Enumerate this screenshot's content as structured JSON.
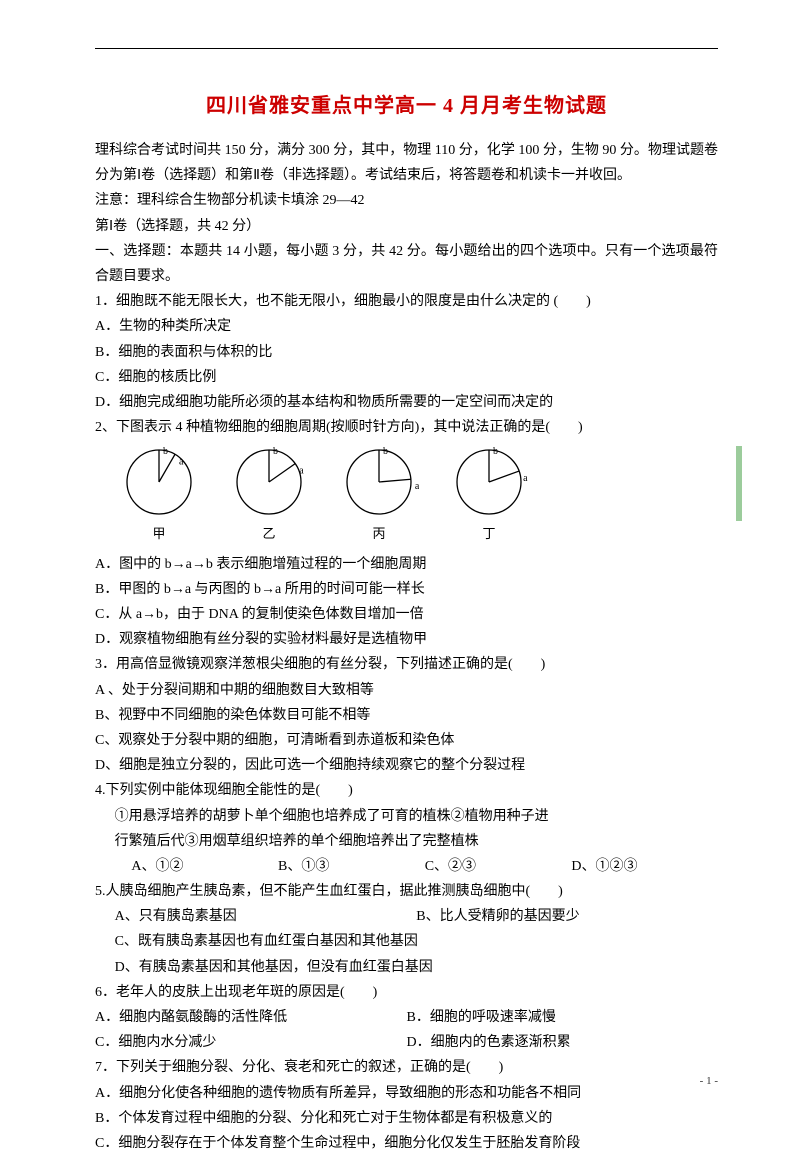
{
  "colors": {
    "title": "#cc0000",
    "text": "#000000",
    "bg": "#ffffff",
    "green_bar": "#9ccc9c"
  },
  "title": "四川省雅安重点中学高一 4 月月考生物试题",
  "intro": {
    "p1": "理科综合考试时间共 150 分，满分 300 分，其中，物理 110 分，化学 100 分，生物 90 分。物理试题卷分为第Ⅰ卷（选择题）和第Ⅱ卷（非选择题）。考试结束后，将答题卷和机读卡一并收回。",
    "p2": "注意：理科综合生物部分机读卡填涂 29—42",
    "p3": "第Ⅰ卷（选择题，共 42 分）",
    "p4": "一、选择题：本题共 14 小题，每小题 3 分，共 42 分。每小题给出的四个选项中。只有一个选项最符合题目要求。"
  },
  "q1": {
    "stem": "1．细胞既不能无限长大，也不能无限小，细胞最小的限度是由什么决定的 (　　)",
    "A": "A．生物的种类所决定",
    "B": "B．细胞的表面积与体积的比",
    "C": "C．细胞的核质比例",
    "D": "D．细胞完成细胞功能所必须的基本结构和物质所需要的一定空间而决定的"
  },
  "q2": {
    "stem": "2、下图表示 4 种植物细胞的细胞周期(按顺时针方向)，其中说法正确的是(　　)",
    "A": "A．图中的 b→a→b 表示细胞增殖过程的一个细胞周期",
    "B": "B．甲图的 b→a 与丙图的 b→a 所用的时间可能一样长",
    "C": "C．从 a→b，由于 DNA 的复制使染色体数目增加一倍",
    "D": "D．观察植物细胞有丝分裂的实验材料最好是选植物甲",
    "labels": [
      "甲",
      "乙",
      "丙",
      "丁"
    ],
    "sector_angles": [
      30,
      55,
      85,
      70
    ]
  },
  "q3": {
    "stem": "3．用高倍显微镜观察洋葱根尖细胞的有丝分裂，下列描述正确的是(　　)",
    "A": "A 、处于分裂间期和中期的细胞数目大致相等",
    "B": "B、视野中不同细胞的染色体数目可能不相等",
    "C": "C、观察处于分裂中期的细胞，可清晰看到赤道板和染色体",
    "D": "D、细胞是独立分裂的，因此可选一个细胞持续观察它的整个分裂过程"
  },
  "q4": {
    "stem": "4.下列实例中能体现细胞全能性的是(　　)",
    "sub1": "①用悬浮培养的胡萝卜单个细胞也培养成了可育的植株②植物用种子进",
    "sub2": "行繁殖后代③用烟草组织培养的单个细胞培养出了完整植株",
    "A": "A、①②",
    "B": "B、①③",
    "C": "C、②③",
    "D": "D、①②③"
  },
  "q5": {
    "stem": "5.人胰岛细胞产生胰岛素，但不能产生血红蛋白，据此推测胰岛细胞中(　　)",
    "A": "A、只有胰岛素基因",
    "B": "B、比人受精卵的基因要少",
    "C": "C、既有胰岛素基因也有血红蛋白基因和其他基因",
    "D": "D、有胰岛素基因和其他基因，但没有血红蛋白基因"
  },
  "q6": {
    "stem": "6．老年人的皮肤上出现老年斑的原因是(　　)",
    "A": "A．细胞内酪氨酸酶的活性降低",
    "B": "B．细胞的呼吸速率减慢",
    "C": "C．细胞内水分减少",
    "D": "D．细胞内的色素逐渐积累"
  },
  "q7": {
    "stem": "7．下列关于细胞分裂、分化、衰老和死亡的叙述，正确的是(　　)",
    "A": "A．细胞分化使各种细胞的遗传物质有所差异，导致细胞的形态和功能各不相同",
    "B": "B．个体发育过程中细胞的分裂、分化和死亡对于生物体都是有积极意义的",
    "C": "C．细胞分裂存在于个体发育整个生命过程中，细胞分化仅发生于胚胎发育阶段"
  },
  "page_number": "- 1 -"
}
